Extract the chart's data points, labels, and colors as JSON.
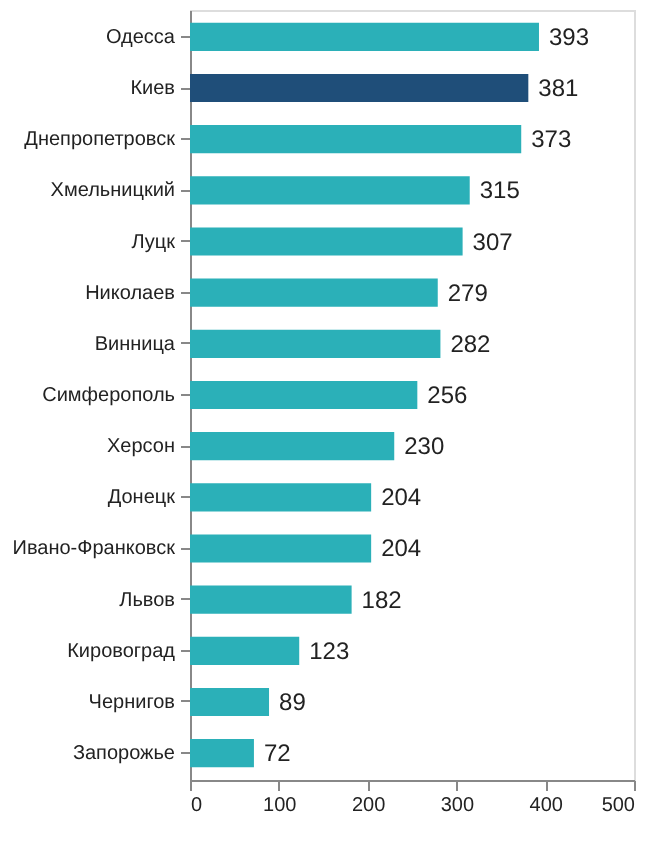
{
  "chart_data": {
    "type": "bar",
    "orientation": "horizontal",
    "categories": [
      "Одесса",
      "Киев",
      "Днепропетровск",
      "Хмельницкий",
      "Луцк",
      "Николаев",
      "Винница",
      "Симферополь",
      "Херсон",
      "Донецк",
      "Ивано-Франковск",
      "Львов",
      "Кировоград",
      "Чернигов",
      "Запорожье"
    ],
    "values": [
      393,
      381,
      373,
      315,
      307,
      279,
      282,
      256,
      230,
      204,
      204,
      182,
      123,
      89,
      72
    ],
    "colors": [
      "#2bb0b8",
      "#1f4e79",
      "#2bb0b8",
      "#2bb0b8",
      "#2bb0b8",
      "#2bb0b8",
      "#2bb0b8",
      "#2bb0b8",
      "#2bb0b8",
      "#2bb0b8",
      "#2bb0b8",
      "#2bb0b8",
      "#2bb0b8",
      "#2bb0b8",
      "#2bb0b8"
    ],
    "xlim": [
      0,
      500
    ],
    "xticks": [
      0,
      100,
      200,
      300,
      400,
      500
    ],
    "data_labels": true,
    "grid": false
  }
}
